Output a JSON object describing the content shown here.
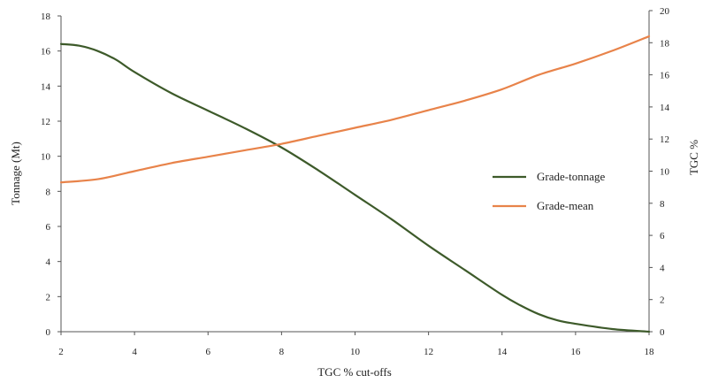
{
  "chart_data": {
    "type": "line",
    "title": "",
    "xlabel": "TGC % cut-offs",
    "ylabel_left": "Tonnage (Mt)",
    "ylabel_right": "TGC %",
    "xlim": [
      2,
      18
    ],
    "ylim_left": [
      0,
      18
    ],
    "ylim_right": [
      0,
      20
    ],
    "x_ticks": [
      2,
      4,
      6,
      8,
      10,
      12,
      14,
      16,
      18
    ],
    "y_left_ticks": [
      0,
      2,
      4,
      6,
      8,
      10,
      12,
      14,
      16,
      18
    ],
    "y_right_ticks": [
      0,
      2,
      4,
      6,
      8,
      10,
      12,
      14,
      16,
      18,
      20
    ],
    "grid": false,
    "legend_position": "right",
    "series": [
      {
        "name": "Grade-tonnage",
        "axis": "left",
        "color": "#3d5a2a",
        "x": [
          2,
          2.5,
          3,
          3.5,
          4,
          5,
          6,
          7,
          8,
          9,
          10,
          11,
          12,
          13,
          14,
          14.5,
          15,
          15.5,
          16,
          17,
          18
        ],
        "y": [
          16.4,
          16.3,
          16.0,
          15.5,
          14.8,
          13.6,
          12.6,
          11.6,
          10.5,
          9.2,
          7.8,
          6.4,
          4.9,
          3.5,
          2.1,
          1.5,
          1.0,
          0.65,
          0.45,
          0.15,
          0.0
        ]
      },
      {
        "name": "Grade-mean",
        "axis": "right",
        "color": "#e8834a",
        "x": [
          2,
          3,
          4,
          5,
          6,
          7,
          8,
          9,
          10,
          11,
          12,
          13,
          14,
          15,
          16,
          17,
          18
        ],
        "y": [
          9.3,
          9.5,
          10.0,
          10.5,
          10.9,
          11.3,
          11.7,
          12.2,
          12.7,
          13.2,
          13.8,
          14.4,
          15.1,
          16.0,
          16.7,
          17.5,
          18.4
        ]
      }
    ]
  }
}
